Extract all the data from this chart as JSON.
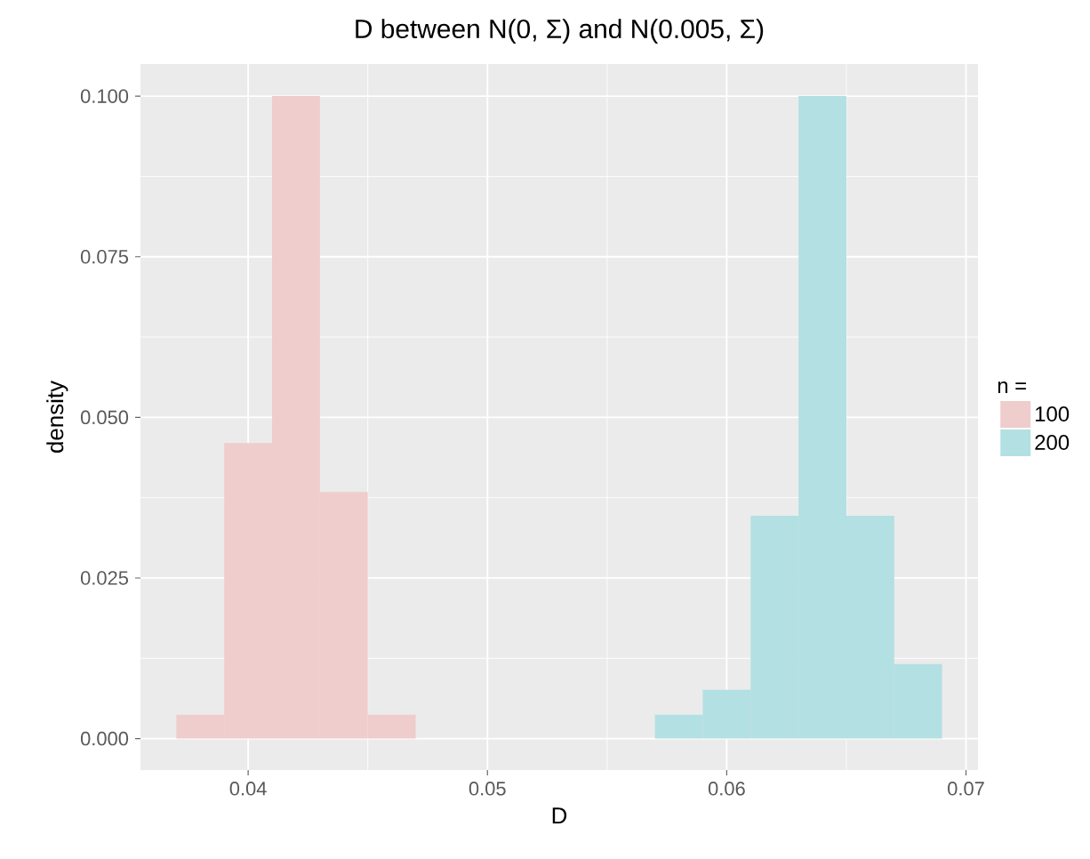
{
  "chart_data": {
    "type": "histogram",
    "title": "D between N(0, Σ) and N(0.005, Σ)",
    "xlabel": "D",
    "ylabel": "density",
    "legend_title": "n =",
    "bins": [
      0.037,
      0.039,
      0.041,
      0.043,
      0.045,
      0.047,
      0.049,
      0.051,
      0.053,
      0.055,
      0.057,
      0.059,
      0.061,
      0.063,
      0.065,
      0.067,
      0.069
    ],
    "series": [
      {
        "name": "100",
        "color": "#eecdcc",
        "values": [
          0.0037,
          0.046,
          0.1,
          0.0384,
          0.0037,
          null,
          null,
          null,
          null,
          null,
          null,
          null,
          null,
          null,
          null,
          null
        ]
      },
      {
        "name": "200",
        "color": "#b3e0e2",
        "values": [
          null,
          null,
          null,
          null,
          null,
          null,
          null,
          null,
          null,
          null,
          0.0037,
          0.0076,
          0.0347,
          0.1,
          0.0347,
          0.0116
        ]
      }
    ],
    "xlim": [
      0.0355,
      0.0705
    ],
    "ylim": [
      -0.0049,
      0.105
    ],
    "xticks": [
      {
        "value": 0.04,
        "label": "0.04"
      },
      {
        "value": 0.05,
        "label": "0.05"
      },
      {
        "value": 0.06,
        "label": "0.06"
      },
      {
        "value": 0.07,
        "label": "0.07"
      }
    ],
    "yticks": [
      {
        "value": 0,
        "label": "0.000"
      },
      {
        "value": 0.025,
        "label": "0.025"
      },
      {
        "value": 0.05,
        "label": "0.050"
      },
      {
        "value": 0.075,
        "label": "0.075"
      },
      {
        "value": 0.1,
        "label": "0.100"
      }
    ],
    "grid": true,
    "legend": "right"
  }
}
